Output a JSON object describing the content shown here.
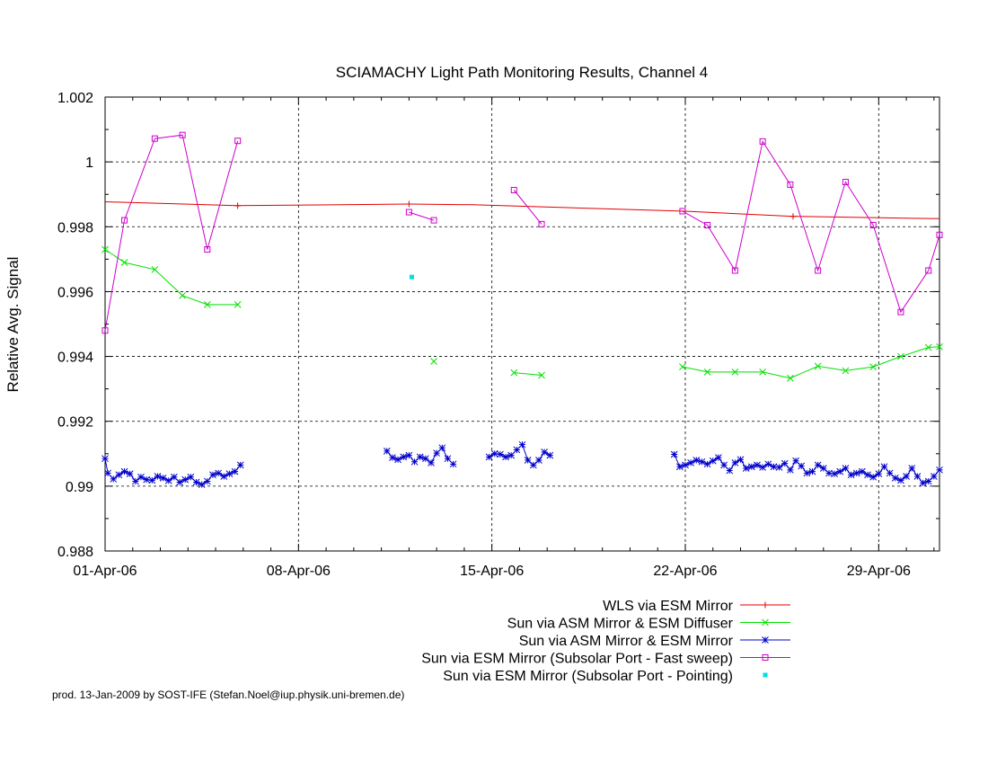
{
  "chart_data": {
    "type": "line",
    "title": "SCIAMACHY Light Path Monitoring Results, Channel 4",
    "xlabel": "",
    "ylabel": "Relative Avg. Signal",
    "x_start": "01-Apr-06",
    "xlim": [
      0,
      30.2
    ],
    "ylim": [
      0.988,
      1.002
    ],
    "x_ticks": [
      {
        "x": 0,
        "label": "01-Apr-06"
      },
      {
        "x": 7,
        "label": "08-Apr-06"
      },
      {
        "x": 14,
        "label": "15-Apr-06"
      },
      {
        "x": 21,
        "label": "22-Apr-06"
      },
      {
        "x": 28,
        "label": "29-Apr-06"
      }
    ],
    "y_ticks": [
      {
        "y": 0.988,
        "label": "0.988"
      },
      {
        "y": 0.99,
        "label": "0.99"
      },
      {
        "y": 0.992,
        "label": "0.992"
      },
      {
        "y": 0.994,
        "label": "0.994"
      },
      {
        "y": 0.996,
        "label": "0.996"
      },
      {
        "y": 0.998,
        "label": "0.998"
      },
      {
        "y": 1.0,
        "label": "1"
      },
      {
        "y": 1.002,
        "label": "1.002"
      }
    ],
    "grid": true,
    "legend_position": "bottom-right",
    "series": [
      {
        "name": "WLS via ESM Mirror",
        "color": "#e00000",
        "marker": "plus",
        "segments": [
          [
            [
              0,
              0.99877
            ],
            [
              4.8,
              0.99865
            ],
            [
              11.0,
              0.9987
            ],
            [
              13.3,
              0.99868
            ],
            [
              21.0,
              0.99848
            ],
            [
              24.9,
              0.99832
            ],
            [
              30.2,
              0.99825
            ]
          ]
        ],
        "marker_points": [
          [
            4.8,
            0.99865
          ],
          [
            11.0,
            0.9987
          ],
          [
            24.9,
            0.99832
          ]
        ]
      },
      {
        "name": "Sun via ASM Mirror & ESM Diffuser",
        "color": "#00e000",
        "marker": "cross",
        "segments": [
          [
            [
              0,
              0.9973
            ],
            [
              0.7,
              0.9969
            ],
            [
              1.8,
              0.99668
            ],
            [
              2.8,
              0.99588
            ],
            [
              3.7,
              0.9956
            ],
            [
              4.8,
              0.9956
            ]
          ],
          [
            [
              11.9,
              0.99385
            ]
          ],
          [
            [
              14.8,
              0.9935
            ],
            [
              15.8,
              0.99342
            ]
          ],
          [
            [
              20.9,
              0.99368
            ],
            [
              21.8,
              0.99352
            ],
            [
              22.8,
              0.99352
            ],
            [
              23.8,
              0.99352
            ],
            [
              24.8,
              0.99333
            ],
            [
              25.8,
              0.9937
            ],
            [
              26.8,
              0.99356
            ],
            [
              27.8,
              0.99368
            ],
            [
              28.8,
              0.994
            ],
            [
              29.8,
              0.99428
            ],
            [
              30.2,
              0.9943
            ]
          ]
        ]
      },
      {
        "name": "Sun via ASM Mirror & ESM Mirror",
        "color": "#0000cc",
        "marker": "star",
        "segments": [
          [
            [
              0,
              0.99085
            ],
            [
              0.1,
              0.9904
            ],
            [
              0.3,
              0.99022
            ],
            [
              0.5,
              0.99035
            ],
            [
              0.7,
              0.99045
            ],
            [
              0.9,
              0.99038
            ],
            [
              1.1,
              0.99015
            ],
            [
              1.3,
              0.99028
            ],
            [
              1.5,
              0.9902
            ],
            [
              1.7,
              0.99018
            ],
            [
              1.9,
              0.9903
            ],
            [
              2.1,
              0.99025
            ],
            [
              2.3,
              0.99017
            ],
            [
              2.5,
              0.99028
            ],
            [
              2.7,
              0.99012
            ],
            [
              2.9,
              0.9902
            ],
            [
              3.1,
              0.99028
            ],
            [
              3.3,
              0.99012
            ],
            [
              3.5,
              0.99005
            ],
            [
              3.7,
              0.99015
            ],
            [
              3.9,
              0.99035
            ],
            [
              4.1,
              0.9904
            ],
            [
              4.3,
              0.9903
            ],
            [
              4.5,
              0.99038
            ],
            [
              4.7,
              0.99045
            ],
            [
              4.9,
              0.99065
            ]
          ],
          [
            [
              10.2,
              0.99108
            ],
            [
              10.4,
              0.99088
            ],
            [
              10.6,
              0.99082
            ],
            [
              10.8,
              0.9909
            ],
            [
              11.0,
              0.99095
            ],
            [
              11.2,
              0.99075
            ],
            [
              11.4,
              0.9909
            ],
            [
              11.6,
              0.99085
            ],
            [
              11.8,
              0.99072
            ],
            [
              12.0,
              0.99102
            ],
            [
              12.2,
              0.99118
            ],
            [
              12.4,
              0.99085
            ],
            [
              12.6,
              0.99068
            ]
          ],
          [
            [
              13.9,
              0.9909
            ],
            [
              14.1,
              0.991
            ],
            [
              14.3,
              0.99098
            ],
            [
              14.5,
              0.9909
            ],
            [
              14.7,
              0.99095
            ],
            [
              14.9,
              0.99112
            ],
            [
              15.1,
              0.99128
            ],
            [
              15.3,
              0.9908
            ],
            [
              15.5,
              0.99065
            ],
            [
              15.7,
              0.9908
            ],
            [
              15.9,
              0.99105
            ],
            [
              16.1,
              0.99095
            ]
          ],
          [
            [
              20.6,
              0.99098
            ],
            [
              20.8,
              0.9906
            ],
            [
              21.0,
              0.99065
            ],
            [
              21.2,
              0.99072
            ],
            [
              21.4,
              0.9908
            ],
            [
              21.6,
              0.99075
            ],
            [
              21.8,
              0.99068
            ],
            [
              22.0,
              0.99078
            ],
            [
              22.2,
              0.99088
            ],
            [
              22.4,
              0.99065
            ],
            [
              22.6,
              0.99048
            ],
            [
              22.8,
              0.99072
            ],
            [
              23.0,
              0.99082
            ],
            [
              23.2,
              0.99055
            ],
            [
              23.4,
              0.9906
            ],
            [
              23.6,
              0.99065
            ],
            [
              23.8,
              0.99058
            ],
            [
              24.0,
              0.99068
            ],
            [
              24.2,
              0.9906
            ],
            [
              24.4,
              0.99058
            ],
            [
              24.6,
              0.9907
            ],
            [
              24.8,
              0.9905
            ],
            [
              25.0,
              0.99078
            ],
            [
              25.2,
              0.99062
            ],
            [
              25.4,
              0.9904
            ],
            [
              25.6,
              0.99045
            ],
            [
              25.8,
              0.99065
            ],
            [
              26.0,
              0.99055
            ],
            [
              26.2,
              0.9904
            ],
            [
              26.4,
              0.99038
            ],
            [
              26.6,
              0.99045
            ],
            [
              26.8,
              0.99055
            ],
            [
              27.0,
              0.99035
            ],
            [
              27.2,
              0.9904
            ],
            [
              27.4,
              0.99045
            ],
            [
              27.6,
              0.99035
            ],
            [
              27.8,
              0.99028
            ],
            [
              28.0,
              0.99038
            ],
            [
              28.2,
              0.9906
            ],
            [
              28.4,
              0.9904
            ],
            [
              28.6,
              0.99025
            ],
            [
              28.8,
              0.99018
            ],
            [
              29.0,
              0.9903
            ],
            [
              29.2,
              0.99055
            ],
            [
              29.4,
              0.9903
            ],
            [
              29.6,
              0.9901
            ],
            [
              29.8,
              0.99015
            ],
            [
              30.0,
              0.9903
            ],
            [
              30.2,
              0.9905
            ]
          ]
        ]
      },
      {
        "name": "Sun via ESM Mirror (Subsolar Port - Fast sweep)",
        "color": "#cc00cc",
        "marker": "square",
        "segments": [
          [
            [
              0,
              0.9948
            ],
            [
              0.7,
              0.9982
            ],
            [
              1.8,
              1.00072
            ],
            [
              2.8,
              1.00083
            ],
            [
              3.7,
              0.9973
            ],
            [
              4.8,
              1.00065
            ]
          ],
          [
            [
              11.0,
              0.99845
            ],
            [
              11.9,
              0.9982
            ]
          ],
          [
            [
              14.8,
              0.99913
            ],
            [
              15.8,
              0.99808
            ]
          ],
          [
            [
              20.9,
              0.99848
            ],
            [
              21.8,
              0.99805
            ],
            [
              22.8,
              0.99665
            ],
            [
              23.8,
              1.00063
            ],
            [
              24.8,
              0.9993
            ],
            [
              25.8,
              0.99665
            ],
            [
              26.8,
              0.99938
            ],
            [
              27.8,
              0.99805
            ],
            [
              28.8,
              0.99537
            ],
            [
              29.8,
              0.99665
            ],
            [
              30.2,
              0.99775
            ]
          ]
        ]
      },
      {
        "name": "Sun via ESM Mirror (Subsolar Port - Pointing)",
        "color": "#00e0e0",
        "marker": "dot",
        "segments": [
          [
            [
              11.1,
              0.99645
            ]
          ]
        ]
      }
    ]
  },
  "footer": "prod. 13-Jan-2009 by SOST-IFE (Stefan.Noel@iup.physik.uni-bremen.de)"
}
